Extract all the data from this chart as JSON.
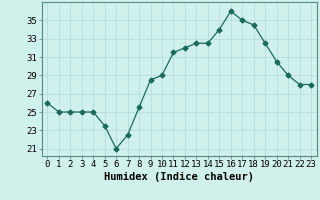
{
  "x": [
    0,
    1,
    2,
    3,
    4,
    5,
    6,
    7,
    8,
    9,
    10,
    11,
    12,
    13,
    14,
    15,
    16,
    17,
    18,
    19,
    20,
    21,
    22,
    23
  ],
  "y": [
    26.0,
    25.0,
    25.0,
    25.0,
    25.0,
    23.5,
    21.0,
    22.5,
    25.5,
    28.5,
    29.0,
    31.5,
    32.0,
    32.5,
    32.5,
    34.0,
    36.0,
    35.0,
    34.5,
    32.5,
    30.5,
    29.0,
    28.0,
    28.0
  ],
  "line_color": "#1a6b5a",
  "marker": "D",
  "markersize": 2.5,
  "background_color": "#cff0eb",
  "grid_color": "#b8ddd8",
  "xlabel": "Humidex (Indice chaleur)",
  "xlabel_fontsize": 7.5,
  "ylabel_ticks": [
    21,
    23,
    25,
    27,
    29,
    31,
    33,
    35
  ],
  "ylim": [
    20.2,
    37.0
  ],
  "xlim": [
    -0.5,
    23.5
  ],
  "xticks": [
    0,
    1,
    2,
    3,
    4,
    5,
    6,
    7,
    8,
    9,
    10,
    11,
    12,
    13,
    14,
    15,
    16,
    17,
    18,
    19,
    20,
    21,
    22,
    23
  ],
  "tick_fontsize": 6.5
}
